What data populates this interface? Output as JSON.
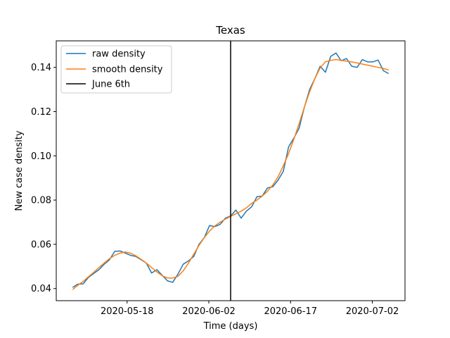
{
  "chart_data": {
    "type": "line",
    "title": "Texas",
    "xlabel": "Time (days)",
    "ylabel": "New case density",
    "x_start": "2020-05-08",
    "x_end": "2020-07-05",
    "xlim": [
      "2020-05-05",
      "2020-07-08"
    ],
    "ylim": [
      0.0345,
      0.152
    ],
    "x_ticks": [
      {
        "date": "2020-05-18",
        "label": "2020-05-18"
      },
      {
        "date": "2020-06-02",
        "label": "2020-06-02"
      },
      {
        "date": "2020-06-17",
        "label": "2020-06-17"
      },
      {
        "date": "2020-07-02",
        "label": "2020-07-02"
      }
    ],
    "y_ticks": [
      {
        "value": 0.04,
        "label": "0.04"
      },
      {
        "value": 0.06,
        "label": "0.06"
      },
      {
        "value": 0.08,
        "label": "0.08"
      },
      {
        "value": 0.1,
        "label": "0.10"
      },
      {
        "value": 0.12,
        "label": "0.12"
      },
      {
        "value": 0.14,
        "label": "0.14"
      }
    ],
    "grid": false,
    "legend_position": "top-left",
    "series": [
      {
        "name": "raw density",
        "color": "#1f77b4",
        "values": [
          0.0405,
          0.042,
          0.0421,
          0.045,
          0.0468,
          0.0485,
          0.051,
          0.053,
          0.0568,
          0.057,
          0.056,
          0.055,
          0.0545,
          0.053,
          0.0515,
          0.047,
          0.0485,
          0.046,
          0.0435,
          0.0428,
          0.0465,
          0.051,
          0.0525,
          0.0545,
          0.06,
          0.063,
          0.0685,
          0.068,
          0.069,
          0.0718,
          0.0728,
          0.0755,
          0.0718,
          0.075,
          0.077,
          0.0815,
          0.0818,
          0.0855,
          0.086,
          0.089,
          0.093,
          0.104,
          0.108,
          0.1125,
          0.122,
          0.13,
          0.135,
          0.1405,
          0.1378,
          0.145,
          0.1465,
          0.143,
          0.144,
          0.1405,
          0.14,
          0.1435,
          0.1425,
          0.1425,
          0.1433,
          0.1385,
          0.1372
        ]
      },
      {
        "name": "smooth density",
        "color": "#ff7f0e",
        "values": [
          0.0395,
          0.0415,
          0.0432,
          0.0453,
          0.0473,
          0.0495,
          0.0515,
          0.0535,
          0.055,
          0.056,
          0.0565,
          0.056,
          0.0548,
          0.0532,
          0.0515,
          0.0495,
          0.0475,
          0.0458,
          0.0448,
          0.0447,
          0.0455,
          0.048,
          0.0515,
          0.0555,
          0.0595,
          0.063,
          0.066,
          0.0683,
          0.07,
          0.0714,
          0.0726,
          0.0738,
          0.075,
          0.0765,
          0.0785,
          0.08,
          0.0818,
          0.084,
          0.0868,
          0.0905,
          0.0955,
          0.101,
          0.1075,
          0.1145,
          0.122,
          0.129,
          0.135,
          0.1398,
          0.1425,
          0.1432,
          0.1435,
          0.1432,
          0.1428,
          0.1425,
          0.142,
          0.1415,
          0.141,
          0.1405,
          0.14,
          0.1395,
          0.1388
        ]
      }
    ],
    "vertical_line": {
      "name": "June 6th",
      "date": "2020-06-06",
      "color": "#000000"
    }
  }
}
